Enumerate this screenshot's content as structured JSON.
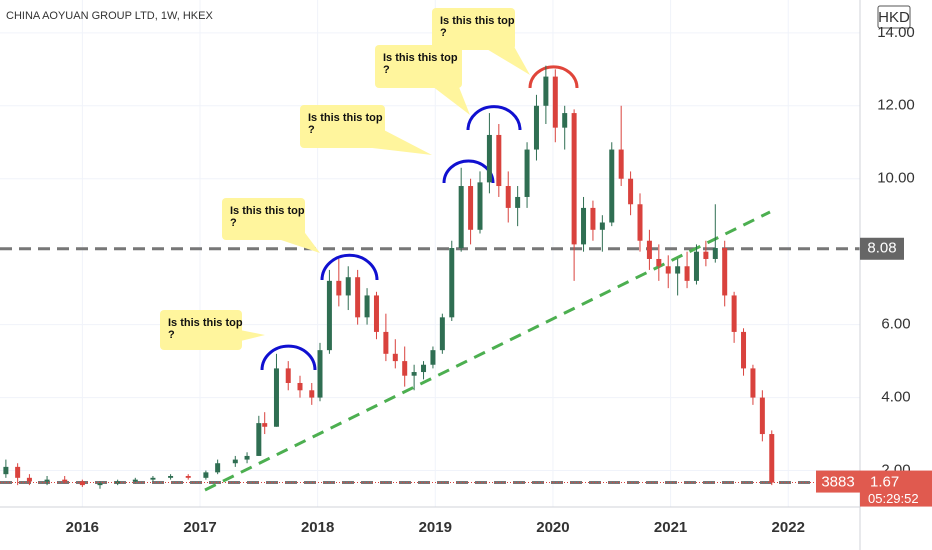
{
  "chart_data": {
    "type": "candlestick",
    "title": "CHINA AOYUAN GROUP LTD, 1W, HKEX",
    "currency": "HKD",
    "symbol_code": "3883",
    "countdown": "05:29:52",
    "last_price": 1.67,
    "hlines": [
      8.08,
      1.67
    ],
    "up_color": "#2f6e52",
    "down_color": "#d9423d",
    "xlim": [
      2015.3,
      2022.61
    ],
    "xticks": [
      2016,
      2017,
      2018,
      2019,
      2020,
      2021,
      2022
    ],
    "ylim": [
      1.0,
      14.9
    ],
    "yticks": [
      {
        "value": 2,
        "label": "2.00"
      },
      {
        "value": 4,
        "label": "4.00"
      },
      {
        "value": 6,
        "label": "6.00"
      },
      {
        "value": 10,
        "label": "10.00"
      },
      {
        "value": 12,
        "label": "12.00"
      },
      {
        "value": 14,
        "label": "14.00"
      }
    ],
    "grid": true,
    "annotations": [
      [
        "Is this this top",
        "?"
      ],
      [
        "Is this this top",
        "?"
      ],
      [
        "Is this this top",
        "?"
      ],
      [
        "Is this this top",
        "?"
      ],
      [
        "Is this this top",
        "?"
      ]
    ],
    "x": [
      2015.35,
      2015.45,
      2015.55,
      2015.7,
      2015.85,
      2016.0,
      2016.15,
      2016.3,
      2016.45,
      2016.6,
      2016.75,
      2016.9,
      2017.05,
      2017.15,
      2017.3,
      2017.4,
      2017.5,
      2017.55,
      2017.65,
      2017.75,
      2017.85,
      2017.95,
      2018.02,
      2018.1,
      2018.18,
      2018.26,
      2018.34,
      2018.42,
      2018.5,
      2018.58,
      2018.66,
      2018.74,
      2018.82,
      2018.9,
      2018.98,
      2019.06,
      2019.14,
      2019.22,
      2019.3,
      2019.38,
      2019.46,
      2019.54,
      2019.62,
      2019.7,
      2019.78,
      2019.86,
      2019.94,
      2020.02,
      2020.1,
      2020.18,
      2020.26,
      2020.34,
      2020.42,
      2020.5,
      2020.58,
      2020.66,
      2020.74,
      2020.82,
      2020.9,
      2020.98,
      2021.06,
      2021.14,
      2021.22,
      2021.3,
      2021.38,
      2021.46,
      2021.54,
      2021.62,
      2021.7,
      2021.78,
      2021.86
    ],
    "open": [
      1.9,
      2.1,
      1.8,
      1.7,
      1.75,
      1.7,
      1.6,
      1.65,
      1.7,
      1.75,
      1.8,
      1.85,
      1.8,
      1.95,
      2.2,
      2.3,
      2.4,
      3.3,
      3.2,
      4.8,
      4.4,
      4.2,
      4.0,
      5.3,
      7.2,
      6.8,
      7.3,
      6.2,
      6.8,
      5.8,
      5.2,
      5.0,
      4.6,
      4.7,
      4.9,
      5.3,
      6.2,
      8.1,
      9.8,
      8.6,
      9.9,
      11.2,
      9.8,
      9.2,
      9.5,
      10.8,
      12.0,
      12.8,
      11.4,
      11.8,
      8.2,
      9.2,
      8.6,
      8.8,
      10.8,
      10.0,
      9.3,
      8.3,
      7.8,
      7.6,
      7.4,
      7.6,
      7.2,
      8.0,
      7.8,
      8.1,
      6.8,
      5.8,
      4.8,
      4.0,
      3.0
    ],
    "high": [
      2.3,
      2.2,
      1.9,
      1.85,
      1.85,
      1.75,
      1.7,
      1.75,
      1.8,
      1.85,
      1.9,
      1.9,
      2.0,
      2.3,
      2.4,
      2.5,
      3.5,
      3.6,
      5.2,
      5.0,
      4.6,
      4.4,
      5.5,
      7.5,
      7.8,
      7.6,
      7.5,
      7.0,
      6.9,
      6.3,
      5.6,
      5.4,
      4.9,
      5.0,
      5.4,
      6.3,
      8.3,
      10.3,
      10.0,
      10.2,
      11.8,
      11.5,
      10.2,
      9.8,
      11.0,
      12.3,
      13.1,
      13.0,
      12.0,
      11.9,
      9.5,
      9.4,
      9.0,
      11.0,
      12.0,
      10.2,
      9.6,
      8.6,
      8.2,
      7.9,
      7.8,
      8.0,
      8.2,
      8.3,
      9.3,
      8.3,
      6.9,
      5.9,
      4.9,
      4.2,
      3.1
    ],
    "low": [
      1.8,
      1.6,
      1.6,
      1.6,
      1.65,
      1.55,
      1.5,
      1.6,
      1.65,
      1.7,
      1.75,
      1.75,
      1.75,
      1.9,
      2.1,
      2.2,
      2.4,
      3.0,
      3.2,
      4.2,
      4.0,
      3.8,
      3.9,
      5.2,
      6.5,
      6.4,
      6.0,
      6.0,
      5.6,
      5.0,
      4.8,
      4.3,
      4.2,
      4.5,
      4.8,
      5.2,
      6.1,
      8.0,
      8.2,
      8.5,
      9.6,
      9.5,
      8.8,
      8.7,
      9.2,
      10.5,
      11.5,
      11.0,
      10.8,
      7.2,
      8.0,
      8.3,
      8.0,
      8.7,
      9.8,
      9.0,
      8.0,
      7.5,
      7.2,
      7.0,
      6.8,
      7.0,
      7.1,
      7.6,
      7.7,
      6.5,
      5.5,
      4.6,
      3.8,
      2.8,
      1.6
    ],
    "close": [
      2.1,
      1.8,
      1.7,
      1.75,
      1.7,
      1.6,
      1.65,
      1.7,
      1.75,
      1.8,
      1.85,
      1.8,
      1.95,
      2.2,
      2.3,
      2.4,
      3.3,
      3.2,
      4.8,
      4.4,
      4.2,
      4.0,
      5.3,
      7.2,
      6.8,
      7.3,
      6.2,
      6.8,
      5.8,
      5.2,
      5.0,
      4.6,
      4.7,
      4.9,
      5.3,
      6.2,
      8.1,
      9.8,
      8.6,
      9.9,
      11.2,
      9.8,
      9.2,
      9.5,
      10.8,
      12.0,
      12.8,
      11.4,
      11.8,
      8.2,
      9.2,
      8.6,
      8.8,
      10.8,
      10.0,
      9.3,
      8.3,
      7.8,
      7.6,
      7.4,
      7.6,
      7.2,
      8.0,
      7.8,
      8.1,
      6.8,
      5.8,
      4.8,
      4.0,
      3.0,
      1.67
    ]
  }
}
